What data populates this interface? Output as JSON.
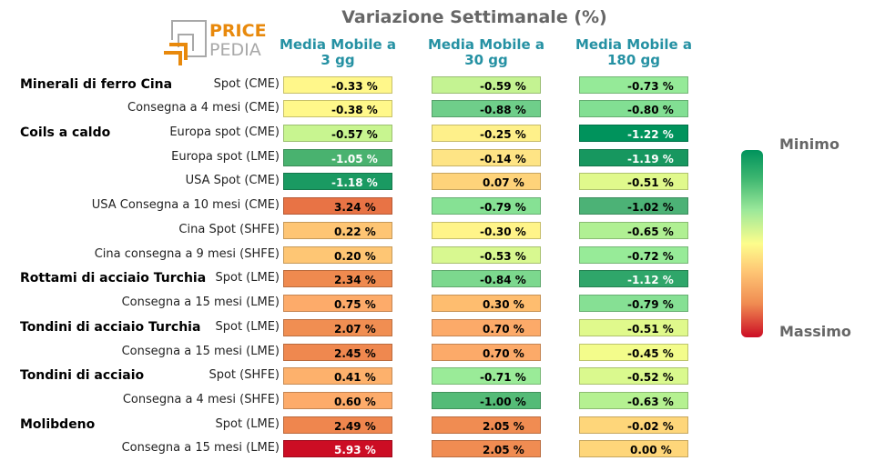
{
  "title": "Variazione Settimanale (%)",
  "logo": {
    "text_top": "PRICE",
    "text_bottom": "PEDIA"
  },
  "legend": {
    "min_label": "Minimo",
    "max_label": "Massimo"
  },
  "chart_data": {
    "type": "heatmap",
    "title": "Variazione Settimanale (%)",
    "columns": [
      "Media Mobile a\n3 gg",
      "Media Mobile a\n30 gg",
      "Media Mobile a\n180 gg"
    ],
    "groups": [
      {
        "label": "Minerali di ferro Cina",
        "row": 0
      },
      {
        "label": "Coils a caldo",
        "row": 2
      },
      {
        "label": "Rottami di acciaio Turchia",
        "row": 8
      },
      {
        "label": "Tondini di acciaio Turchia",
        "row": 10
      },
      {
        "label": "Tondini di acciaio",
        "row": 12
      },
      {
        "label": "Molibdeno",
        "row": 14
      }
    ],
    "rows": [
      {
        "label": "Spot (CME)",
        "values": [
          "-0.33 %",
          "-0.59 %",
          "-0.73 %"
        ],
        "colors": [
          "#fff78a",
          "#c4f392",
          "#95ea98"
        ],
        "white": [
          false,
          false,
          false
        ]
      },
      {
        "label": "Consegna a 4 mesi (CME)",
        "values": [
          "-0.38 %",
          "-0.88 %",
          "-0.80 %"
        ],
        "colors": [
          "#fff88a",
          "#6fce8a",
          "#82df93"
        ],
        "white": [
          false,
          false,
          false
        ]
      },
      {
        "label": "Europa spot (CME)",
        "values": [
          "-0.57 %",
          "-0.25 %",
          "-1.22 %"
        ],
        "colors": [
          "#c8f590",
          "#fef08a",
          "#00935c"
        ],
        "white": [
          false,
          false,
          true
        ]
      },
      {
        "label": "Europa spot (LME)",
        "values": [
          "-1.05 %",
          "-0.14 %",
          "-1.19 %"
        ],
        "colors": [
          "#49b26f",
          "#fee485",
          "#17975f"
        ],
        "white": [
          true,
          false,
          true
        ]
      },
      {
        "label": "USA Spot (CME)",
        "values": [
          "-1.18 %",
          "0.07 %",
          "-0.51 %"
        ],
        "colors": [
          "#1a9a62",
          "#fed37a",
          "#e0f98c"
        ],
        "white": [
          true,
          false,
          false
        ]
      },
      {
        "label": "USA Consegna a 10 mesi (CME)",
        "values": [
          "3.24 %",
          "-0.79 %",
          "-1.02 %"
        ],
        "colors": [
          "#e87345",
          "#86e194",
          "#4cb276"
        ],
        "white": [
          false,
          false,
          false
        ]
      },
      {
        "label": "Cina Spot (SHFE)",
        "values": [
          "0.22 %",
          "-0.30 %",
          "-0.65 %"
        ],
        "colors": [
          "#fec574",
          "#fff489",
          "#b0f093"
        ],
        "white": [
          false,
          false,
          false
        ]
      },
      {
        "label": "Cina consegna a 9 mesi (SHFE)",
        "values": [
          "0.20 %",
          "-0.53 %",
          "-0.72 %"
        ],
        "colors": [
          "#fec674",
          "#d8f890",
          "#97eb98"
        ],
        "white": [
          false,
          false,
          false
        ]
      },
      {
        "label": "Spot (LME)",
        "values": [
          "2.34 %",
          "-0.84 %",
          "-1.12 %"
        ],
        "colors": [
          "#ef8a4f",
          "#7cd88e",
          "#2fa66a"
        ],
        "white": [
          false,
          false,
          true
        ]
      },
      {
        "label": "Consegna a 15 mesi (LME)",
        "values": [
          "0.75 %",
          "0.30 %",
          "-0.79 %"
        ],
        "colors": [
          "#fdab6a",
          "#febd6f",
          "#86e094"
        ],
        "white": [
          false,
          false,
          false
        ]
      },
      {
        "label": "Spot (LME)",
        "values": [
          "2.07 %",
          "0.70 %",
          "-0.51 %"
        ],
        "colors": [
          "#f08e52",
          "#fcaa69",
          "#e0f98c"
        ],
        "white": [
          false,
          false,
          false
        ]
      },
      {
        "label": "Consegna a 15 mesi (LME)",
        "values": [
          "2.45 %",
          "0.70 %",
          "-0.45 %"
        ],
        "colors": [
          "#ef884f",
          "#fcaa69",
          "#f3fc8b"
        ],
        "white": [
          false,
          false,
          false
        ]
      },
      {
        "label": "Spot (SHFE)",
        "values": [
          "0.41 %",
          "-0.71 %",
          "-0.52 %"
        ],
        "colors": [
          "#fdb16c",
          "#9aeb98",
          "#daf98e"
        ],
        "white": [
          false,
          false,
          false
        ]
      },
      {
        "label": "Consegna a 4 mesi (SHFE)",
        "values": [
          "0.60 %",
          "-1.00 %",
          "-0.63 %"
        ],
        "colors": [
          "#fdab6a",
          "#54bb77",
          "#b5f191"
        ],
        "white": [
          false,
          false,
          false
        ]
      },
      {
        "label": "Spot (LME)",
        "values": [
          "2.49 %",
          "2.05 %",
          "-0.02 %"
        ],
        "colors": [
          "#ef864e",
          "#f08c52",
          "#fed67a"
        ],
        "white": [
          false,
          false,
          false
        ]
      },
      {
        "label": "Consegna a 15 mesi (LME)",
        "values": [
          "5.93 %",
          "2.05 %",
          "0.00 %"
        ],
        "colors": [
          "#cc0d24",
          "#f08c52",
          "#fed67a"
        ],
        "white": [
          true,
          false,
          false
        ]
      }
    ]
  }
}
